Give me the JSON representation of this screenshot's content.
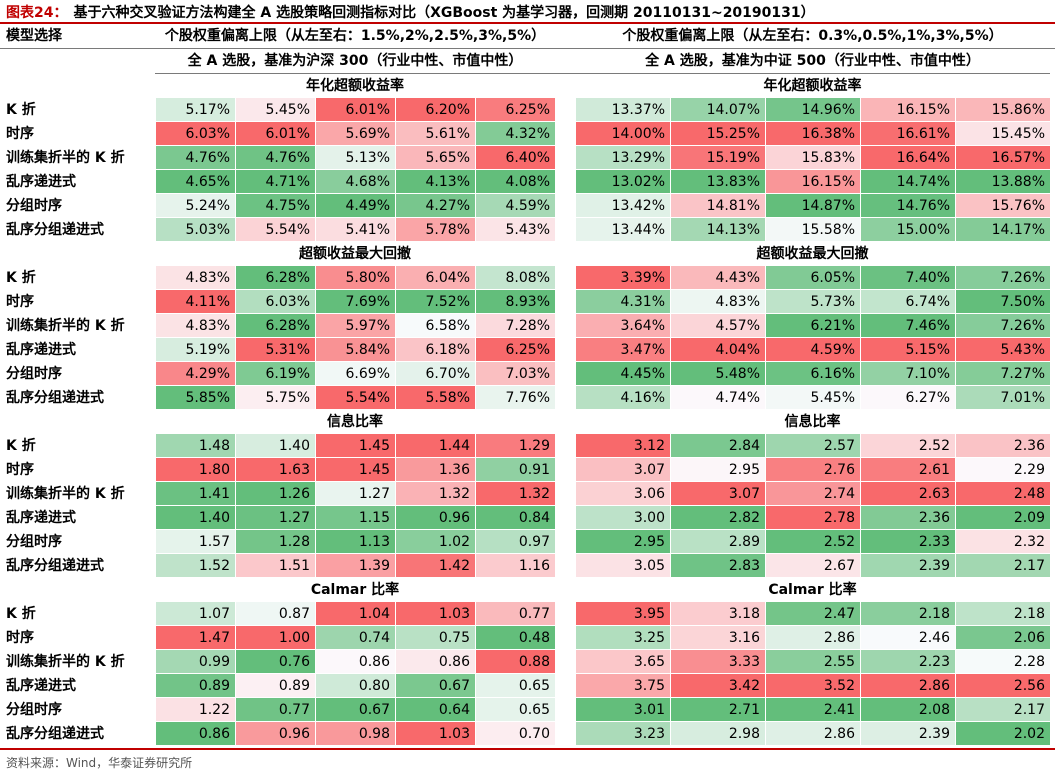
{
  "title": {
    "label": "图表24：",
    "text": "基于六种交叉验证方法构建全 A 选股策略回测指标对比（XGBoost 为基学习器，回测期 20110131~20190131）"
  },
  "header": {
    "model_col": "模型选择",
    "left_weight": "个股权重偏离上限（从左至右：1.5%,2%,2.5%,3%,5%）",
    "right_weight": "个股权重偏离上限（从左至右：0.3%,0.5%,1%,3%,5%）",
    "left_universe": "全 A 选股，基准为沪深 300（行业中性、市值中性）",
    "right_universe": "全 A 选股，基准为中证 500（行业中性、市值中性）"
  },
  "models": [
    "K 折",
    "时序",
    "训练集折半的 K 折",
    "乱序递进式",
    "分组时序",
    "乱序分组递进式"
  ],
  "colors": {
    "red": "#f8696b",
    "white": "#fcfcff",
    "green": "#63be7b",
    "accent": "#c00000"
  },
  "sections": [
    {
      "title": "年化超额收益率",
      "left": [
        [
          "5.17%",
          "5.45%",
          "6.01%",
          "6.20%",
          "6.25%"
        ],
        [
          "6.03%",
          "6.01%",
          "5.69%",
          "5.61%",
          "4.32%"
        ],
        [
          "4.76%",
          "4.76%",
          "5.13%",
          "5.65%",
          "6.40%"
        ],
        [
          "4.65%",
          "4.71%",
          "4.68%",
          "4.13%",
          "4.08%"
        ],
        [
          "5.24%",
          "4.75%",
          "4.49%",
          "4.27%",
          "4.59%"
        ],
        [
          "5.03%",
          "5.54%",
          "5.41%",
          "5.78%",
          "5.43%"
        ]
      ],
      "right": [
        [
          "13.37%",
          "14.07%",
          "14.96%",
          "16.15%",
          "15.86%"
        ],
        [
          "14.00%",
          "15.25%",
          "16.38%",
          "16.61%",
          "15.45%"
        ],
        [
          "13.29%",
          "15.19%",
          "15.83%",
          "16.64%",
          "16.57%"
        ],
        [
          "13.02%",
          "13.83%",
          "16.15%",
          "14.74%",
          "13.88%"
        ],
        [
          "13.42%",
          "14.81%",
          "14.87%",
          "14.76%",
          "15.76%"
        ],
        [
          "13.44%",
          "14.13%",
          "15.58%",
          "15.00%",
          "14.17%"
        ]
      ]
    },
    {
      "title": "超额收益最大回撤",
      "left": [
        [
          "4.83%",
          "6.28%",
          "5.80%",
          "6.04%",
          "8.08%"
        ],
        [
          "4.11%",
          "6.03%",
          "7.69%",
          "7.52%",
          "8.93%"
        ],
        [
          "4.83%",
          "6.28%",
          "5.97%",
          "6.58%",
          "7.28%"
        ],
        [
          "5.19%",
          "5.31%",
          "5.84%",
          "6.18%",
          "6.25%"
        ],
        [
          "4.29%",
          "6.19%",
          "6.69%",
          "6.70%",
          "7.03%"
        ],
        [
          "5.85%",
          "5.75%",
          "5.54%",
          "5.58%",
          "7.76%"
        ]
      ],
      "right": [
        [
          "3.39%",
          "4.43%",
          "6.05%",
          "7.40%",
          "7.26%"
        ],
        [
          "4.31%",
          "4.83%",
          "5.73%",
          "6.74%",
          "7.50%"
        ],
        [
          "3.64%",
          "4.57%",
          "6.21%",
          "7.46%",
          "7.26%"
        ],
        [
          "3.47%",
          "4.04%",
          "4.59%",
          "5.15%",
          "5.43%"
        ],
        [
          "4.45%",
          "5.48%",
          "6.16%",
          "7.10%",
          "7.27%"
        ],
        [
          "4.16%",
          "4.74%",
          "5.45%",
          "6.27%",
          "7.01%"
        ]
      ]
    },
    {
      "title": "信息比率",
      "left": [
        [
          "1.48",
          "1.40",
          "1.45",
          "1.44",
          "1.29"
        ],
        [
          "1.80",
          "1.63",
          "1.45",
          "1.36",
          "0.91"
        ],
        [
          "1.41",
          "1.26",
          "1.27",
          "1.32",
          "1.32"
        ],
        [
          "1.40",
          "1.27",
          "1.15",
          "0.96",
          "0.84"
        ],
        [
          "1.57",
          "1.28",
          "1.13",
          "1.02",
          "0.97"
        ],
        [
          "1.52",
          "1.51",
          "1.39",
          "1.42",
          "1.16"
        ]
      ],
      "right": [
        [
          "3.12",
          "2.84",
          "2.57",
          "2.52",
          "2.36"
        ],
        [
          "3.07",
          "2.95",
          "2.76",
          "2.61",
          "2.29"
        ],
        [
          "3.06",
          "3.07",
          "2.74",
          "2.63",
          "2.48"
        ],
        [
          "3.00",
          "2.82",
          "2.78",
          "2.36",
          "2.09"
        ],
        [
          "2.95",
          "2.89",
          "2.52",
          "2.33",
          "2.32"
        ],
        [
          "3.05",
          "2.83",
          "2.67",
          "2.39",
          "2.17"
        ]
      ]
    },
    {
      "title": "Calmar 比率",
      "left": [
        [
          "1.07",
          "0.87",
          "1.04",
          "1.03",
          "0.77"
        ],
        [
          "1.47",
          "1.00",
          "0.74",
          "0.75",
          "0.48"
        ],
        [
          "0.99",
          "0.76",
          "0.86",
          "0.86",
          "0.88"
        ],
        [
          "0.89",
          "0.89",
          "0.80",
          "0.67",
          "0.65"
        ],
        [
          "1.22",
          "0.77",
          "0.67",
          "0.64",
          "0.65"
        ],
        [
          "0.86",
          "0.96",
          "0.98",
          "1.03",
          "0.70"
        ]
      ],
      "right": [
        [
          "3.95",
          "3.18",
          "2.47",
          "2.18",
          "2.18"
        ],
        [
          "3.25",
          "3.16",
          "2.86",
          "2.46",
          "2.06"
        ],
        [
          "3.65",
          "3.33",
          "2.55",
          "2.23",
          "2.28"
        ],
        [
          "3.75",
          "3.42",
          "3.52",
          "2.86",
          "2.56"
        ],
        [
          "3.01",
          "2.71",
          "2.41",
          "2.08",
          "2.17"
        ],
        [
          "3.23",
          "2.98",
          "2.86",
          "2.39",
          "2.02"
        ]
      ]
    }
  ],
  "source": "资料来源：Wind，华泰证券研究所"
}
